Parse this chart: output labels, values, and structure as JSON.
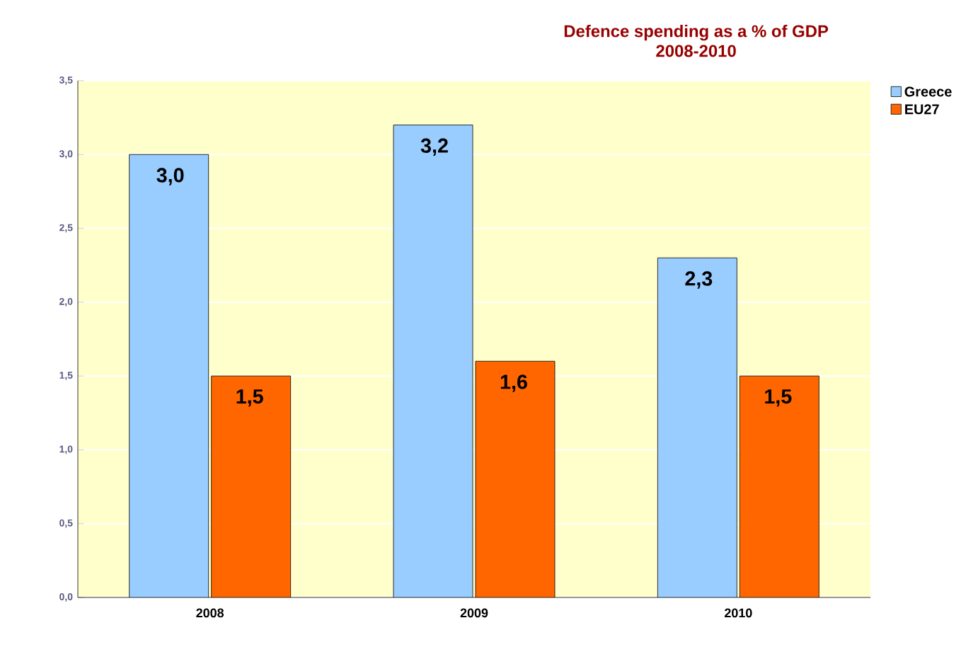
{
  "chart_data": {
    "type": "bar",
    "title": "Defence spending as a % of GDP",
    "subtitle": "2008-2010",
    "categories": [
      "2008",
      "2009",
      "2010"
    ],
    "series": [
      {
        "name": "Greece",
        "color": "#99ccff",
        "values": [
          3.0,
          3.2,
          2.3
        ],
        "value_labels": [
          "3,0",
          "3,2",
          "2,3"
        ]
      },
      {
        "name": "EU27",
        "color": "#ff6600",
        "values": [
          1.5,
          1.6,
          1.5
        ],
        "value_labels": [
          "1,5",
          "1,6",
          "1,5"
        ]
      }
    ],
    "ylim": [
      0,
      3.5
    ],
    "yticks": [
      {
        "value": 0,
        "label": "0,0"
      },
      {
        "value": 0.5,
        "label": "0,5"
      },
      {
        "value": 1,
        "label": "1,0"
      },
      {
        "value": 1.5,
        "label": "1,5"
      },
      {
        "value": 2,
        "label": "2,0"
      },
      {
        "value": 2.5,
        "label": "2,5"
      },
      {
        "value": 3,
        "label": "3,0"
      },
      {
        "value": 3.5,
        "label": "3,5"
      }
    ],
    "grid": "y",
    "legend": "top right"
  }
}
